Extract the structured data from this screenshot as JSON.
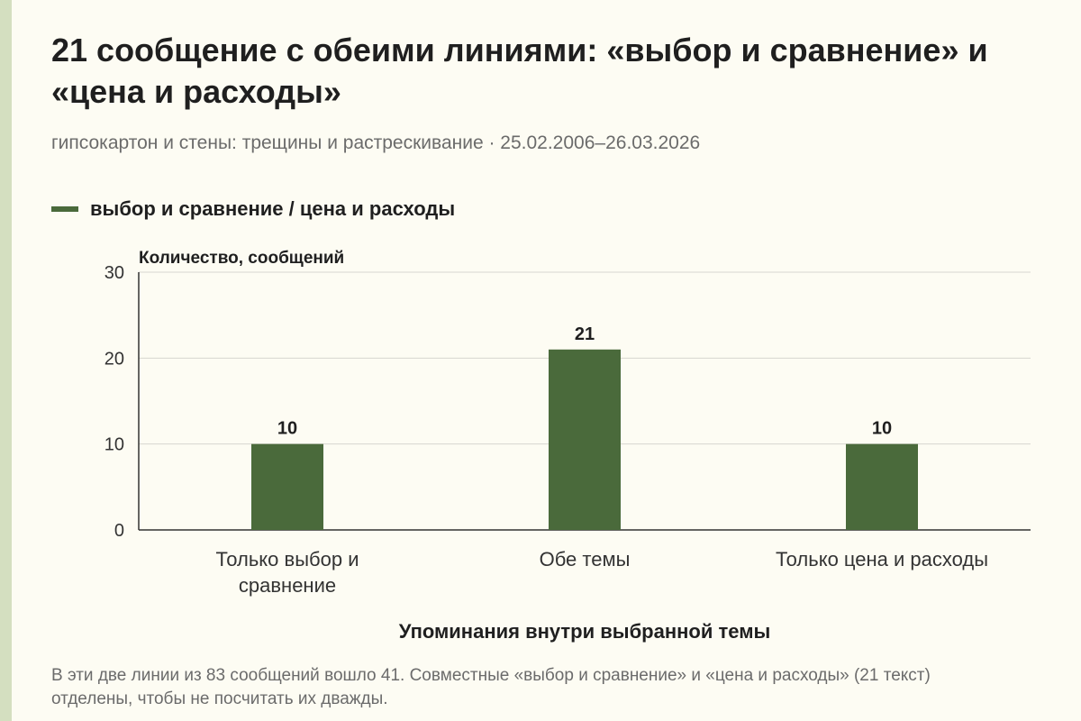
{
  "header": {
    "title": "21 сообщение с обеими линиями: «выбор и сравнение» и «цена и расходы»",
    "subtitle": "гипсокартон и стены: трещины и растрескивание · 25.02.2006–26.03.2026"
  },
  "colors": {
    "bar": "#4a6a3b",
    "accent_bar": "#d4dfc0",
    "background": "#fdfcf3"
  },
  "chart_data": {
    "type": "bar",
    "categories": [
      [
        "Только выбор и",
        "сравнение"
      ],
      [
        "Обе темы"
      ],
      [
        "Только цена и расходы"
      ]
    ],
    "series": [
      {
        "name": "выбор и сравнение / цена и расходы",
        "values": [
          10,
          21,
          10
        ]
      }
    ],
    "ylabel": "Количество, сообщений",
    "xlabel": "Упоминания внутри выбранной темы",
    "ylim": [
      0,
      30
    ],
    "yticks": [
      0,
      10,
      20,
      30
    ],
    "grid": true,
    "legend": "top-left"
  },
  "footnote": "В эти две линии из 83 сообщений вошло 41. Совместные «выбор и сравнение» и «цена и расходы» (21 текст) отделены, чтобы не посчитать их дважды."
}
